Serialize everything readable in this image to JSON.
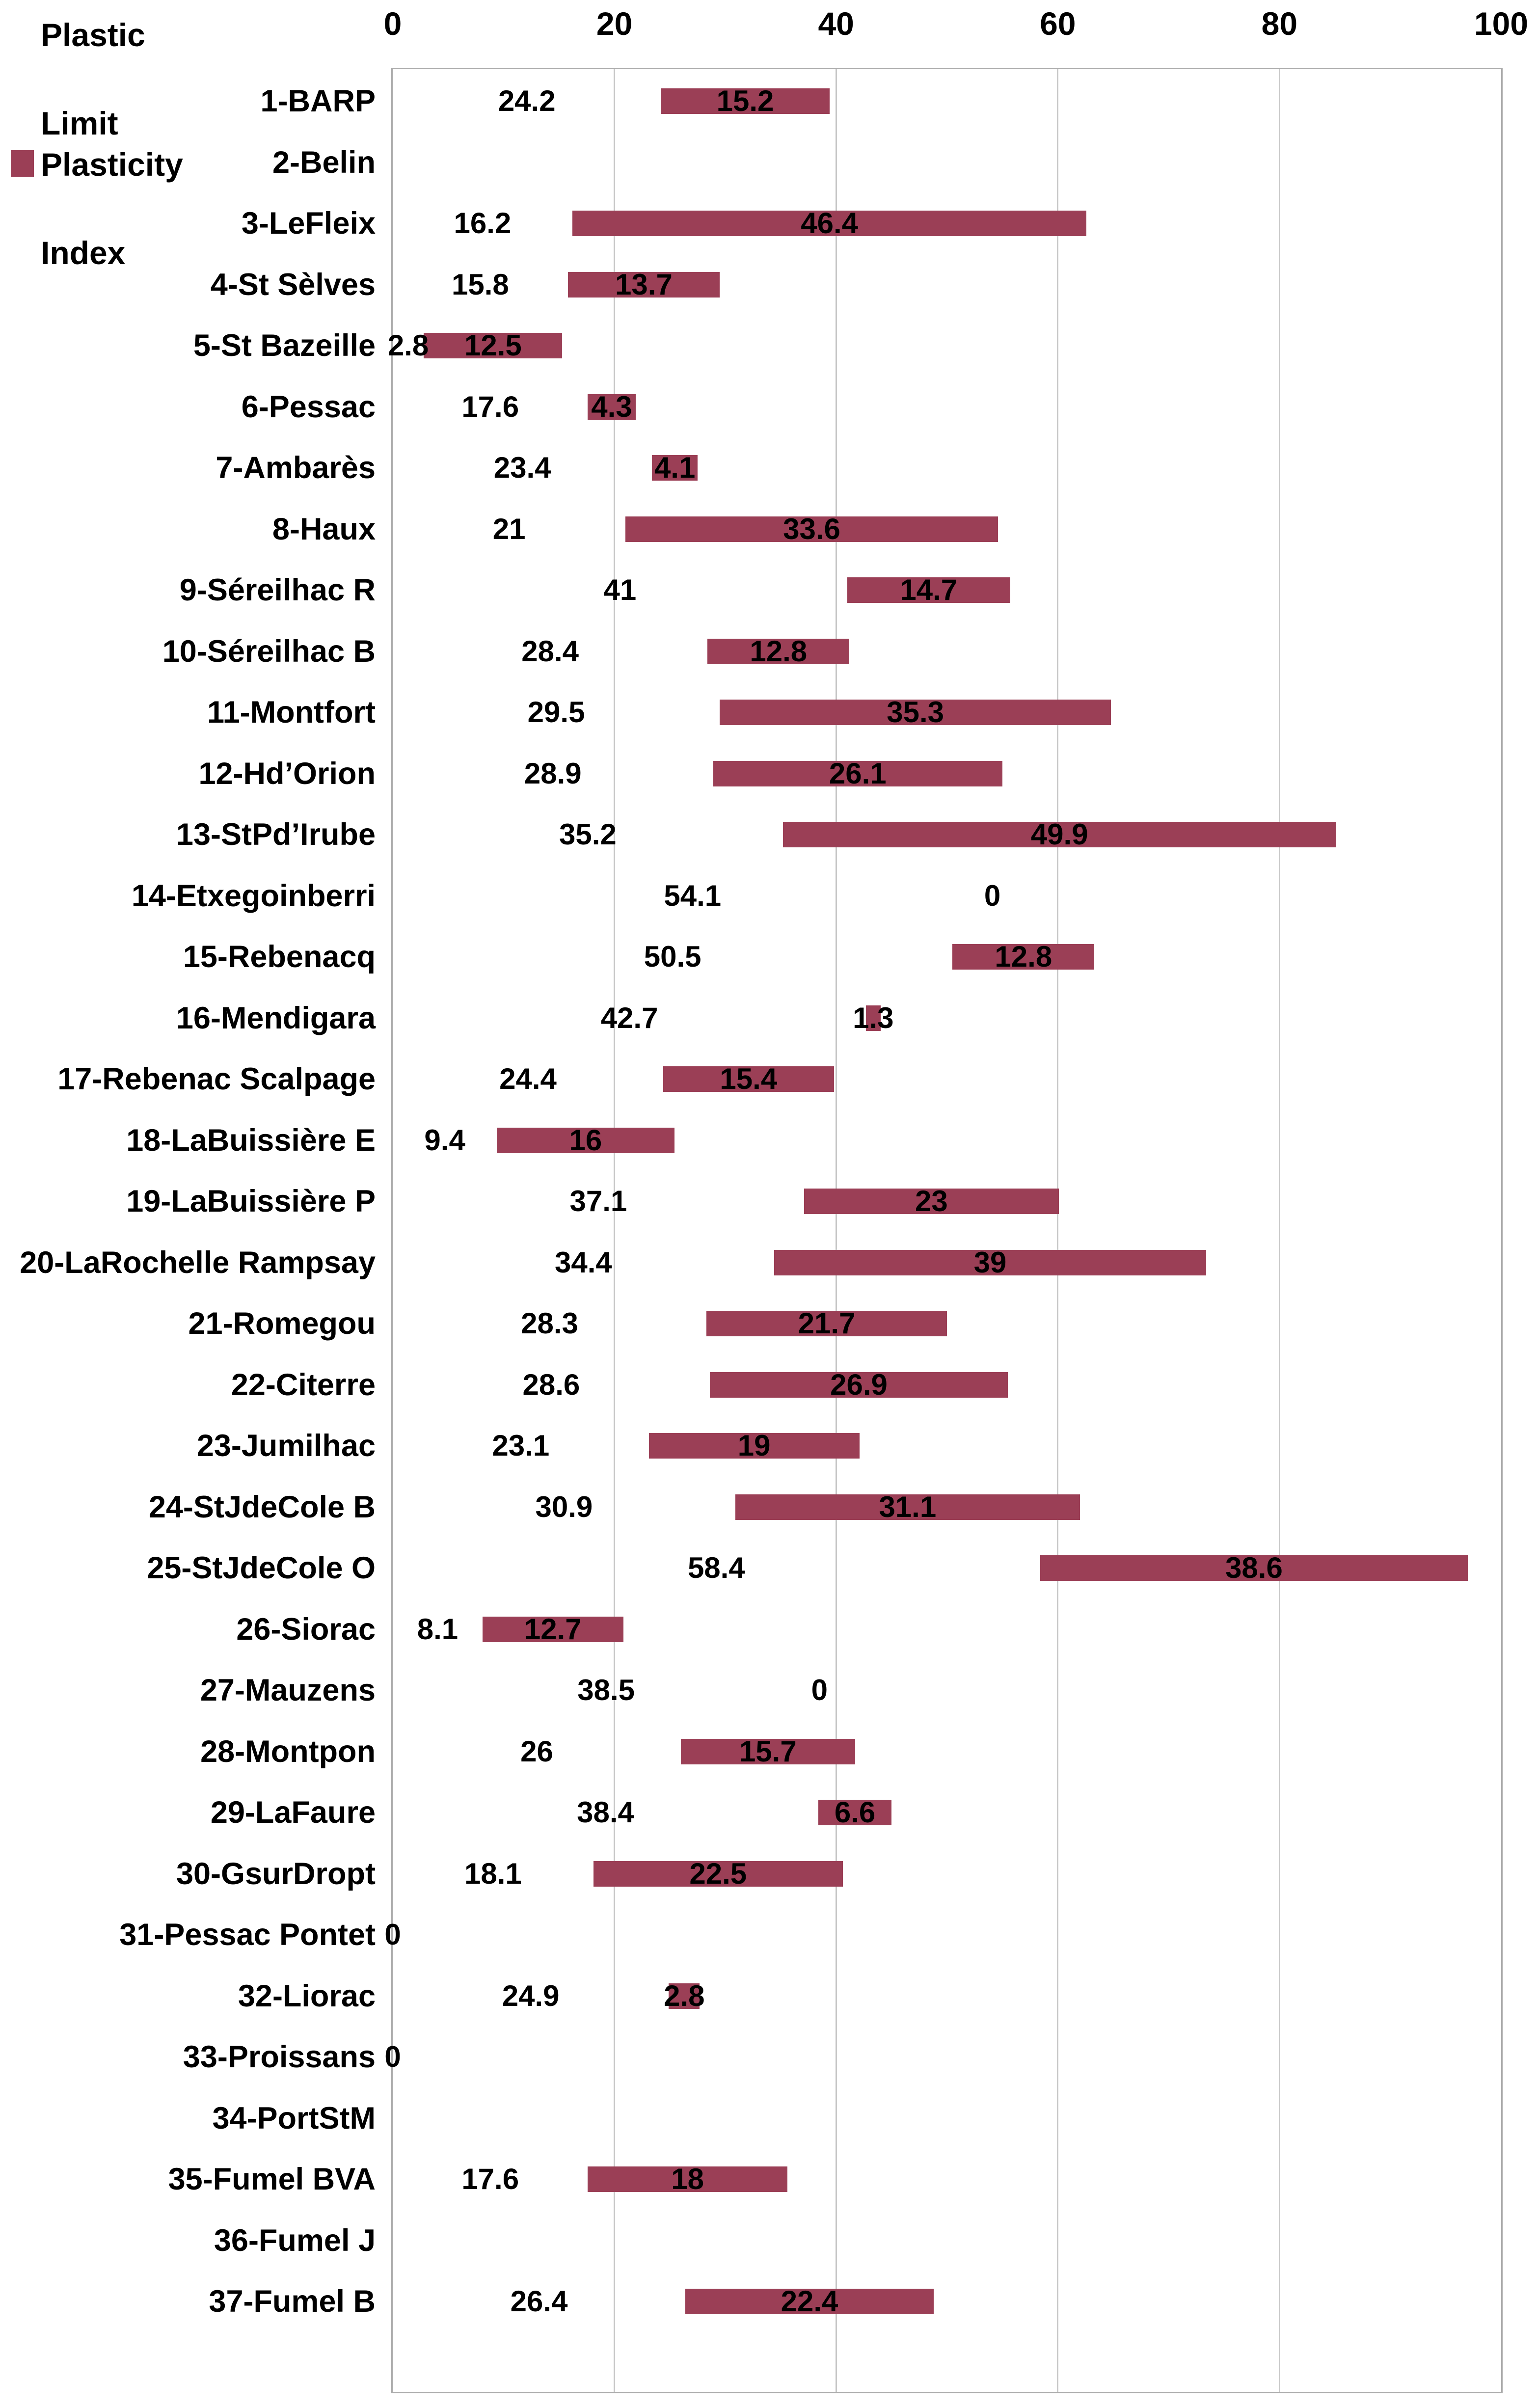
{
  "legend": [
    {
      "name": "plastic-limit",
      "label_lines": [
        "Plastic",
        "Limit"
      ],
      "swatch_color": "transparent"
    },
    {
      "name": "plasticity-index",
      "label_lines": [
        "Plasticity",
        "Index"
      ],
      "swatch_color": "#9B3F56"
    }
  ],
  "colors": {
    "bar": "#9B3F56",
    "gridline": "#C7C7C7",
    "plot_border": "#ABABAB",
    "text": "#000000",
    "background": "#FFFFFF"
  },
  "chart_data": {
    "type": "bar",
    "subtype": "horizontal-stacked-floating",
    "title": "",
    "xlabel": "",
    "ylabel": "",
    "xlim": [
      0,
      100
    ],
    "x_ticks": [
      0,
      20,
      40,
      60,
      80,
      100
    ],
    "x_tick_labels": [
      "0",
      "20",
      "40",
      "60",
      "80",
      "100"
    ],
    "grid": true,
    "legend_position": "top-left",
    "series_names": [
      "Plastic Limit",
      "Plasticity Index"
    ],
    "note": "Plastic Limit series is an invisible offset bar (label only); Plasticity Index is the maroon bar stacked on top of it.",
    "categories": [
      "1-BARP",
      "2-Belin",
      "3-LeFleix",
      "4-St Sèlves",
      "5-St Bazeille",
      "6-Pessac",
      "7-Ambarès",
      "8-Haux",
      "9-Séreilhac R",
      "10-Séreilhac B",
      "11-Montfort",
      "12-Hd’Orion",
      "13-StPd’Irube",
      "14-Etxegoinberri",
      "15-Rebenacq",
      "16-Mendigara",
      "17-Rebenac Scalpage",
      "18-LaBuissière E",
      "19-LaBuissière P",
      "20-LaRochelle Rampsay",
      "21-Romegou",
      "22-Citerre",
      "23-Jumilhac",
      "24-StJdeCole B",
      "25-StJdeCole O",
      "26-Siorac",
      "27-Mauzens",
      "28-Montpon",
      "29-LaFaure",
      "30-GsurDropt",
      "31-Pessac Pontet",
      "32-Liorac",
      "33-Proissans",
      "34-PortStM",
      "35-Fumel BVA",
      "36-Fumel J",
      "37-Fumel B"
    ],
    "series": [
      {
        "name": "Plastic Limit",
        "values": [
          24.2,
          null,
          16.2,
          15.8,
          2.8,
          17.6,
          23.4,
          21,
          41,
          28.4,
          29.5,
          28.9,
          35.2,
          54.1,
          50.5,
          42.7,
          24.4,
          9.4,
          37.1,
          34.4,
          28.3,
          28.6,
          23.1,
          30.9,
          58.4,
          8.1,
          38.5,
          26,
          38.4,
          18.1,
          0,
          24.9,
          0,
          null,
          17.6,
          null,
          26.4
        ]
      },
      {
        "name": "Plasticity Index",
        "values": [
          15.2,
          null,
          46.4,
          13.7,
          12.5,
          4.3,
          4.1,
          33.6,
          14.7,
          12.8,
          35.3,
          26.1,
          49.9,
          0,
          12.8,
          1.3,
          15.4,
          16,
          23,
          39,
          21.7,
          26.9,
          19,
          31.1,
          38.6,
          12.7,
          0,
          15.7,
          6.6,
          22.5,
          null,
          2.8,
          null,
          null,
          18,
          null,
          22.4
        ]
      }
    ],
    "rows": [
      {
        "label": "1-BARP",
        "pl": 24.2,
        "pi": 15.2,
        "pl_label": "24.2",
        "pi_label": "15.2"
      },
      {
        "label": "2-Belin",
        "pl": null,
        "pi": null,
        "pl_label": "",
        "pi_label": ""
      },
      {
        "label": "3-LeFleix",
        "pl": 16.2,
        "pi": 46.4,
        "pl_label": "16.2",
        "pi_label": "46.4"
      },
      {
        "label": "4-St Sèlves",
        "pl": 15.8,
        "pi": 13.7,
        "pl_label": "15.8",
        "pi_label": "13.7"
      },
      {
        "label": "5-St Bazeille",
        "pl": 2.8,
        "pi": 12.5,
        "pl_label": "2.8",
        "pi_label": "12.5"
      },
      {
        "label": "6-Pessac",
        "pl": 17.6,
        "pi": 4.3,
        "pl_label": "17.6",
        "pi_label": "4.3"
      },
      {
        "label": "7-Ambarès",
        "pl": 23.4,
        "pi": 4.1,
        "pl_label": "23.4",
        "pi_label": "4.1"
      },
      {
        "label": "8-Haux",
        "pl": 21,
        "pi": 33.6,
        "pl_label": "21",
        "pi_label": "33.6"
      },
      {
        "label": "9-Séreilhac R",
        "pl": 41,
        "pi": 14.7,
        "pl_label": "41",
        "pi_label": "14.7"
      },
      {
        "label": "10-Séreilhac B",
        "pl": 28.4,
        "pi": 12.8,
        "pl_label": "28.4",
        "pi_label": "12.8"
      },
      {
        "label": "11-Montfort",
        "pl": 29.5,
        "pi": 35.3,
        "pl_label": "29.5",
        "pi_label": "35.3"
      },
      {
        "label": "12-Hd’Orion",
        "pl": 28.9,
        "pi": 26.1,
        "pl_label": "28.9",
        "pi_label": "26.1"
      },
      {
        "label": "13-StPd’Irube",
        "pl": 35.2,
        "pi": 49.9,
        "pl_label": "35.2",
        "pi_label": "49.9"
      },
      {
        "label": "14-Etxegoinberri",
        "pl": 54.1,
        "pi": 0,
        "pl_label": "54.1",
        "pi_label": "0"
      },
      {
        "label": "15-Rebenacq",
        "pl": 50.5,
        "pi": 12.8,
        "pl_label": "50.5",
        "pi_label": "12.8"
      },
      {
        "label": "16-Mendigara",
        "pl": 42.7,
        "pi": 1.3,
        "pl_label": "42.7",
        "pi_label": "1.3"
      },
      {
        "label": "17-Rebenac Scalpage",
        "pl": 24.4,
        "pi": 15.4,
        "pl_label": "24.4",
        "pi_label": "15.4"
      },
      {
        "label": "18-LaBuissière E",
        "pl": 9.4,
        "pi": 16,
        "pl_label": "9.4",
        "pi_label": "16"
      },
      {
        "label": "19-LaBuissière P",
        "pl": 37.1,
        "pi": 23,
        "pl_label": "37.1",
        "pi_label": "23"
      },
      {
        "label": "20-LaRochelle Rampsay",
        "pl": 34.4,
        "pi": 39,
        "pl_label": "34.4",
        "pi_label": "39"
      },
      {
        "label": "21-Romegou",
        "pl": 28.3,
        "pi": 21.7,
        "pl_label": "28.3",
        "pi_label": "21.7"
      },
      {
        "label": "22-Citerre",
        "pl": 28.6,
        "pi": 26.9,
        "pl_label": "28.6",
        "pi_label": "26.9"
      },
      {
        "label": "23-Jumilhac",
        "pl": 23.1,
        "pi": 19,
        "pl_label": "23.1",
        "pi_label": "19"
      },
      {
        "label": "24-StJdeCole B",
        "pl": 30.9,
        "pi": 31.1,
        "pl_label": "30.9",
        "pi_label": "31.1"
      },
      {
        "label": "25-StJdeCole O",
        "pl": 58.4,
        "pi": 38.6,
        "pl_label": "58.4",
        "pi_label": "38.6"
      },
      {
        "label": "26-Siorac",
        "pl": 8.1,
        "pi": 12.7,
        "pl_label": "8.1",
        "pi_label": "12.7"
      },
      {
        "label": "27-Mauzens",
        "pl": 38.5,
        "pi": 0,
        "pl_label": "38.5",
        "pi_label": "0"
      },
      {
        "label": "28-Montpon",
        "pl": 26,
        "pi": 15.7,
        "pl_label": "26",
        "pi_label": "15.7"
      },
      {
        "label": "29-LaFaure",
        "pl": 38.4,
        "pi": 6.6,
        "pl_label": "38.4",
        "pi_label": "6.6"
      },
      {
        "label": "30-GsurDropt",
        "pl": 18.1,
        "pi": 22.5,
        "pl_label": "18.1",
        "pi_label": "22.5"
      },
      {
        "label": "31-Pessac Pontet",
        "pl": 0,
        "pi": null,
        "pl_label": "0",
        "pi_label": ""
      },
      {
        "label": "32-Liorac",
        "pl": 24.9,
        "pi": 2.8,
        "pl_label": "24.9",
        "pi_label": "2.8"
      },
      {
        "label": "33-Proissans",
        "pl": 0,
        "pi": null,
        "pl_label": "0",
        "pi_label": ""
      },
      {
        "label": "34-PortStM",
        "pl": null,
        "pi": null,
        "pl_label": "",
        "pi_label": ""
      },
      {
        "label": "35-Fumel BVA",
        "pl": 17.6,
        "pi": 18,
        "pl_label": "17.6",
        "pi_label": "18"
      },
      {
        "label": "36-Fumel J",
        "pl": null,
        "pi": null,
        "pl_label": "",
        "pi_label": ""
      },
      {
        "label": "37-Fumel B",
        "pl": 26.4,
        "pi": 22.4,
        "pl_label": "26.4",
        "pi_label": "22.4"
      }
    ]
  }
}
